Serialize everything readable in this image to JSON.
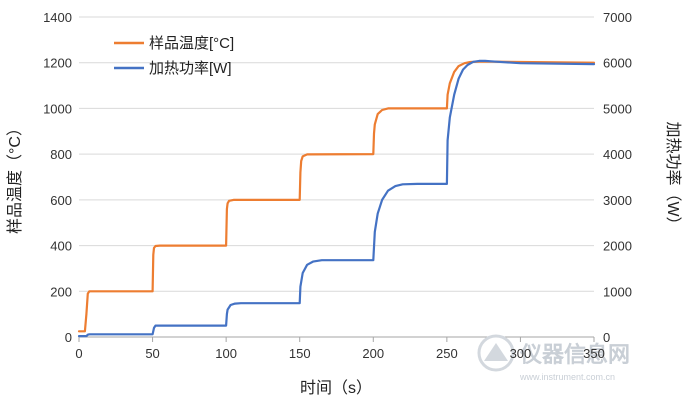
{
  "chart_data": {
    "type": "line",
    "xlabel": "时间（s）",
    "ylabel_left": "样品温度（°C）",
    "ylabel_right": "加热功率（W）",
    "xlim": [
      0,
      350
    ],
    "ylim_left": [
      0,
      1400
    ],
    "ylim_right": [
      0,
      7000
    ],
    "x_ticks": [
      "0",
      "50",
      "100",
      "150",
      "200",
      "250",
      "300",
      "350"
    ],
    "y_left_ticks": [
      "0",
      "200",
      "400",
      "600",
      "800",
      "1000",
      "1200",
      "1400"
    ],
    "y_right_ticks": [
      "0",
      "1000",
      "2000",
      "3000",
      "4000",
      "5000",
      "6000",
      "7000"
    ],
    "grid": "horizontal",
    "legend_position": "top-left",
    "series": [
      {
        "name": "样品温度[°C]",
        "axis": "left",
        "color": "#ED7D31",
        "x": [
          0,
          4,
          5,
          6,
          7,
          49.5,
          50,
          50.5,
          51,
          52,
          55,
          99.5,
          100,
          100.5,
          101,
          102,
          105,
          149.5,
          150,
          150.5,
          151,
          152,
          155,
          199.5,
          200,
          200.5,
          201,
          203,
          206,
          210,
          249.5,
          250,
          250.5,
          252,
          255,
          258,
          262,
          266,
          272,
          280,
          300,
          350
        ],
        "y": [
          25,
          25,
          100,
          190,
          200,
          200,
          200,
          360,
          390,
          398,
          400,
          400,
          400,
          560,
          585,
          596,
          600,
          600,
          600,
          720,
          770,
          790,
          799,
          800,
          800,
          890,
          930,
          975,
          993,
          1000,
          1000,
          1000,
          1060,
          1110,
          1160,
          1185,
          1198,
          1203,
          1205,
          1205,
          1203,
          1200
        ]
      },
      {
        "name": "加热功率[W]",
        "axis": "right",
        "color": "#4472C4",
        "x": [
          0,
          5,
          6,
          7,
          49.5,
          50,
          51,
          52,
          99.5,
          100,
          100.5,
          101,
          103,
          106,
          110,
          149.5,
          150,
          150.5,
          152,
          155,
          159,
          165,
          199.5,
          200,
          201,
          203,
          206,
          210,
          215,
          220,
          230,
          249.5,
          250,
          250.5,
          252,
          255,
          258,
          261,
          264,
          268,
          272,
          276,
          280,
          290,
          300,
          350
        ],
        "y": [
          20,
          20,
          50,
          60,
          60,
          60,
          200,
          250,
          250,
          250,
          500,
          600,
          700,
          730,
          740,
          740,
          740,
          1100,
          1400,
          1580,
          1650,
          1680,
          1680,
          1680,
          2300,
          2700,
          3000,
          3200,
          3300,
          3340,
          3350,
          3350,
          3350,
          4300,
          4800,
          5300,
          5650,
          5850,
          5950,
          6020,
          6040,
          6040,
          6030,
          6010,
          5990,
          5970
        ]
      }
    ]
  },
  "watermark": {
    "text": "仪器信息网",
    "url": "www.instrument.com.cn"
  }
}
